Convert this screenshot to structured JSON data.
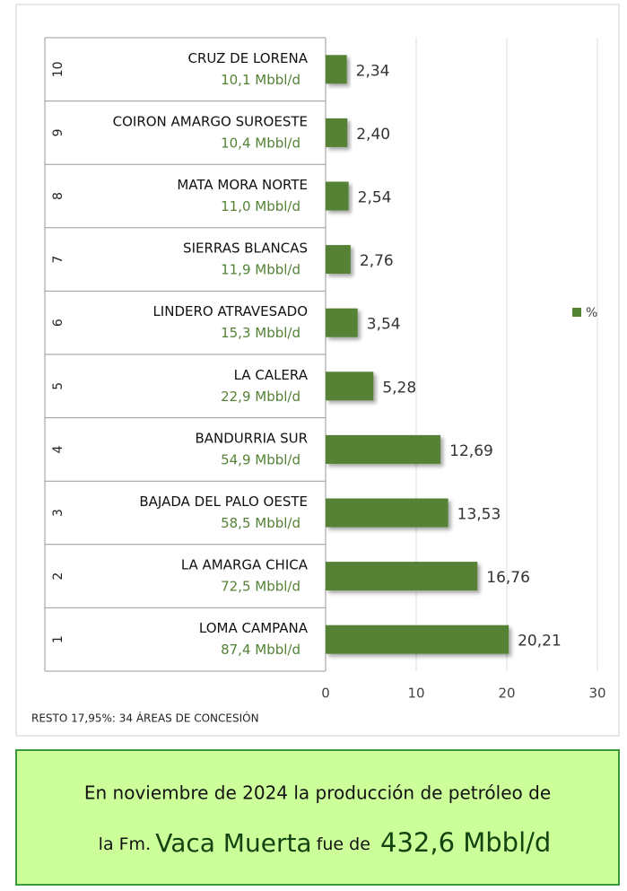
{
  "chart_data": {
    "type": "bar",
    "orientation": "horizontal",
    "ranks": [
      "1",
      "2",
      "3",
      "4",
      "5",
      "6",
      "7",
      "8",
      "9",
      "10"
    ],
    "categories": [
      "LOMA CAMPANA",
      "LA AMARGA CHICA",
      "BAJADA DEL PALO OESTE",
      "BANDURRIA SUR",
      "LA CALERA",
      "LINDERO ATRAVESADO",
      "SIERRAS BLANCAS",
      "MATA MORA NORTE",
      "COIRON AMARGO SUROESTE",
      "CRUZ DE LORENA"
    ],
    "production": [
      "87,4 Mbbl/d",
      "72,5 Mbbl/d",
      "58,5 Mbbl/d",
      "54,9 Mbbl/d",
      "22,9 Mbbl/d",
      "15,3 Mbbl/d",
      "11,9 Mbbl/d",
      "11,0 Mbbl/d",
      "10,4 Mbbl/d",
      "10,1 Mbbl/d"
    ],
    "series": [
      {
        "name": "%",
        "color": "#548235",
        "values": [
          20.21,
          16.76,
          13.53,
          12.69,
          5.28,
          3.54,
          2.76,
          2.54,
          2.4,
          2.34
        ],
        "value_labels": [
          "20,21",
          "16,76",
          "13,53",
          "12,69",
          "5,28",
          "3,54",
          "2,76",
          "2,54",
          "2,40",
          "2,34"
        ]
      }
    ],
    "xlim": [
      0,
      30
    ],
    "xticks": [
      0,
      10,
      20,
      30
    ],
    "grid": true,
    "legend": "right",
    "footnote": "RESTO 17,95%: 34 ÁREAS DE CONCESIÓN"
  },
  "caption": {
    "line1": "En noviembre de 2024 la producción de petróleo de",
    "line2": [
      "la Fm.",
      "Vaca Muerta",
      "fue de",
      "432,6 Mbbl/d"
    ]
  }
}
